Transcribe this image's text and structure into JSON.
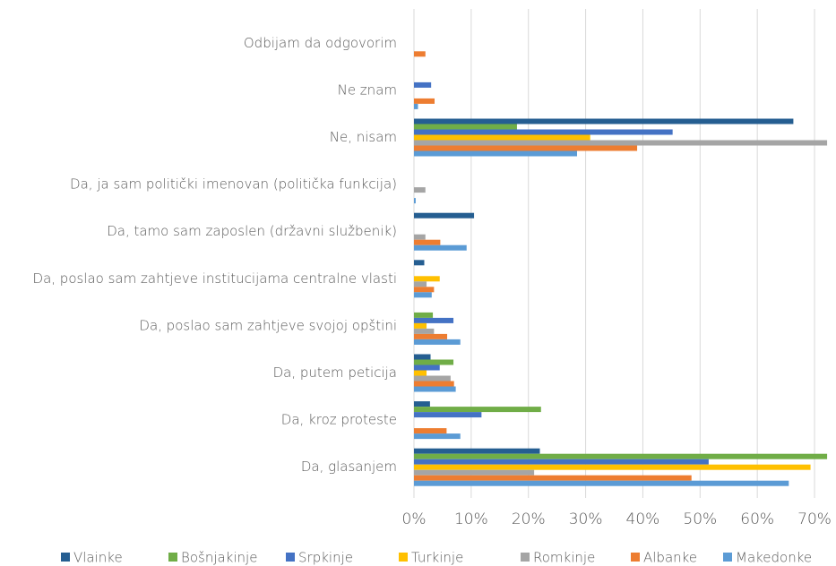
{
  "chart_data": {
    "type": "bar",
    "orientation": "horizontal",
    "categories": [
      "Odbijam da odgovorim",
      "Ne znam",
      "Ne, nisam",
      "Da, ja sam politički imenovan (politička funkcija)",
      "Da, tamo sam zaposlen (državni službenik)",
      "Da, poslao sam zahtjeve institucijama centralne vlasti",
      "Da, poslao sam zahtjeve svojoj opštini",
      "Da, putem peticija",
      "Da, kroz proteste",
      "Da, glasanjem"
    ],
    "series": [
      {
        "name": "Vlainke",
        "color": "#255e91",
        "values": [
          0,
          0,
          66.3,
          0,
          10.5,
          1.8,
          0,
          2.9,
          2.8,
          22.0
        ]
      },
      {
        "name": "Bošnjakinje",
        "color": "#70ad47",
        "values": [
          0,
          0,
          18.0,
          0,
          0,
          0,
          3.3,
          6.9,
          22.2,
          72.2
        ]
      },
      {
        "name": "Srpkinje",
        "color": "#4472c4",
        "values": [
          0,
          3.0,
          45.2,
          0,
          0,
          0,
          6.9,
          4.5,
          11.8,
          51.5
        ]
      },
      {
        "name": "Turkinje",
        "color": "#ffc000",
        "values": [
          0,
          0,
          30.8,
          0,
          0,
          4.5,
          2.2,
          2.2,
          0,
          69.3
        ]
      },
      {
        "name": "Romkinje",
        "color": "#a5a5a5",
        "values": [
          0,
          0,
          72.2,
          2.0,
          2.0,
          2.2,
          3.5,
          6.4,
          0,
          21.0
        ]
      },
      {
        "name": "Albanke",
        "color": "#ed7d31",
        "values": [
          2.0,
          3.6,
          39.0,
          0,
          4.6,
          3.5,
          5.8,
          7.0,
          5.7,
          48.5
        ]
      },
      {
        "name": "Makedonke",
        "color": "#5b9bd5",
        "values": [
          0,
          0.7,
          28.5,
          0.3,
          9.2,
          3.1,
          8.1,
          7.3,
          8.1,
          65.5
        ]
      }
    ],
    "xlim": [
      0,
      72.5
    ],
    "xticks": [
      {
        "value": 0,
        "label": "0%"
      },
      {
        "value": 10,
        "label": "10%"
      },
      {
        "value": 20,
        "label": "20%"
      },
      {
        "value": 30,
        "label": "30%"
      },
      {
        "value": 40,
        "label": "40%"
      },
      {
        "value": 50,
        "label": "50%"
      },
      {
        "value": 60,
        "label": "60%"
      },
      {
        "value": 70,
        "label": "70%"
      }
    ],
    "grid": true,
    "legend": "bottom"
  }
}
